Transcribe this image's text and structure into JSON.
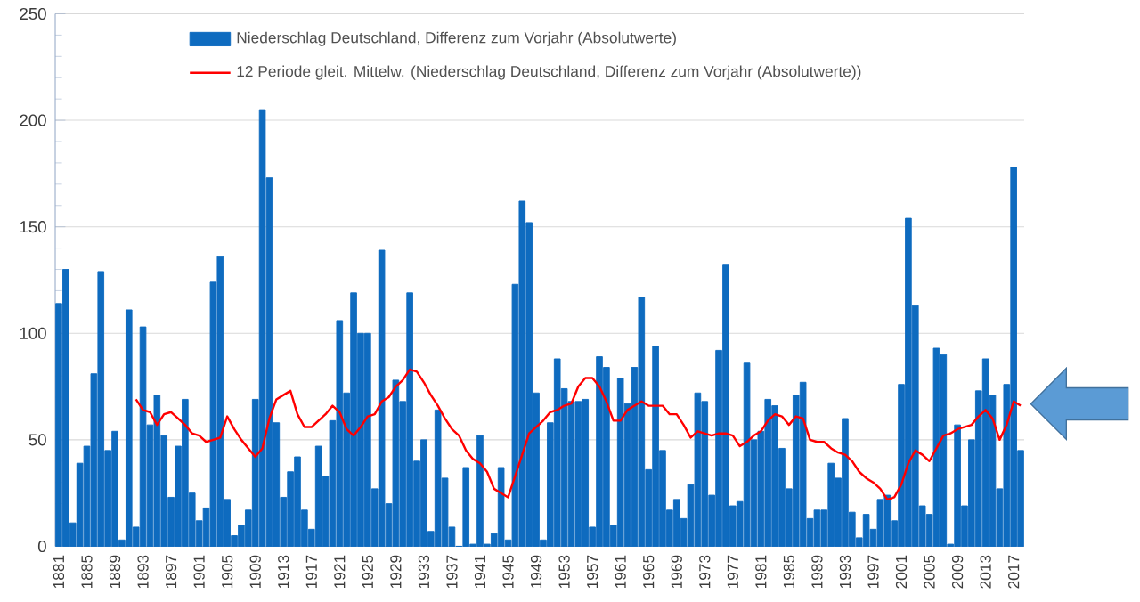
{
  "chart_data": {
    "type": "bar",
    "categories": [
      "1881",
      null,
      null,
      null,
      "1885",
      null,
      null,
      null,
      "1889",
      null,
      null,
      null,
      "1893",
      null,
      null,
      null,
      "1897",
      null,
      null,
      null,
      "1901",
      null,
      null,
      null,
      "1905",
      null,
      null,
      null,
      "1909",
      null,
      null,
      null,
      "1913",
      null,
      null,
      null,
      "1917",
      null,
      null,
      null,
      "1921",
      null,
      null,
      null,
      "1925",
      null,
      null,
      null,
      "1929",
      null,
      null,
      null,
      "1933",
      null,
      null,
      null,
      "1937",
      null,
      null,
      null,
      "1941",
      null,
      null,
      null,
      "1945",
      null,
      null,
      null,
      "1949",
      null,
      null,
      null,
      "1953",
      null,
      null,
      null,
      "1957",
      null,
      null,
      null,
      "1961",
      null,
      null,
      null,
      "1965",
      null,
      null,
      null,
      "1969",
      null,
      null,
      null,
      "1973",
      null,
      null,
      null,
      "1977",
      null,
      null,
      null,
      "1981",
      null,
      null,
      null,
      "1985",
      null,
      null,
      null,
      "1989",
      null,
      null,
      null,
      "1993",
      null,
      null,
      null,
      "1997",
      null,
      null,
      null,
      "2001",
      null,
      null,
      null,
      "2005",
      null,
      null,
      null,
      "2009",
      null,
      null,
      null,
      "2013",
      null,
      null,
      null,
      "2017",
      null
    ],
    "series": [
      {
        "name": "Niederschlag Deutschland, Differenz zum Vorjahr (Absolutwerte)",
        "color": "#0e6bbf",
        "values": [
          114,
          130,
          11,
          39,
          47,
          81,
          129,
          45,
          54,
          3,
          111,
          9,
          103,
          57,
          71,
          52,
          23,
          47,
          69,
          25,
          12,
          18,
          124,
          136,
          22,
          5,
          10,
          17,
          69,
          205,
          173,
          58,
          23,
          35,
          42,
          17,
          8,
          47,
          33,
          59,
          106,
          72,
          119,
          100,
          100,
          27,
          139,
          20,
          78,
          68,
          119,
          40,
          50,
          7,
          64,
          32,
          9,
          0,
          37,
          1,
          52,
          1,
          6,
          37,
          3,
          123,
          162,
          152,
          72,
          3,
          58,
          88,
          74,
          68,
          68,
          69,
          9,
          89,
          84,
          10,
          79,
          67,
          84,
          117,
          36,
          94,
          45,
          17,
          22,
          13,
          29,
          72,
          68,
          24,
          92,
          132,
          19,
          21,
          86,
          50,
          54,
          69,
          66,
          46,
          27,
          71,
          77,
          13,
          17,
          17,
          39,
          32,
          60,
          16,
          4,
          15,
          8,
          22,
          24,
          12,
          76,
          154,
          113,
          19,
          15,
          93,
          90,
          1,
          57,
          19,
          50,
          73,
          88,
          71,
          27,
          76,
          178,
          45
        ]
      },
      {
        "name": "12 Periode gleit. Mittelw. (Niederschlag Deutschland, Differenz zum Vorjahr (Absolutwerte))",
        "type": "line",
        "color": "#ff0000",
        "values": [
          null,
          null,
          null,
          null,
          null,
          null,
          null,
          null,
          null,
          null,
          null,
          69,
          64,
          63,
          57,
          62,
          63,
          60,
          57,
          53,
          52,
          49,
          50,
          51,
          61,
          55,
          50,
          46,
          42,
          46,
          60,
          69,
          71,
          73,
          62,
          56,
          56,
          59,
          62,
          66,
          63,
          55,
          52,
          56,
          61,
          62,
          68,
          70,
          75,
          78,
          83,
          82,
          77,
          71,
          66,
          60,
          55,
          52,
          45,
          41,
          39,
          35,
          27,
          25,
          23,
          33,
          43,
          53,
          56,
          59,
          63,
          64,
          66,
          67,
          75,
          79,
          79,
          75,
          68,
          59,
          59,
          64,
          66,
          68,
          66,
          66,
          66,
          62,
          62,
          57,
          51,
          54,
          53,
          52,
          53,
          53,
          52,
          47,
          49,
          52,
          54,
          59,
          62,
          61,
          57,
          61,
          60,
          50,
          49,
          49,
          46,
          44,
          43,
          40,
          35,
          32,
          30,
          27,
          22,
          23,
          29,
          39,
          45,
          43,
          40,
          46,
          52,
          53,
          55,
          56,
          57,
          61,
          64,
          60,
          50,
          57,
          68,
          66
        ]
      }
    ],
    "ylim": [
      0,
      250
    ],
    "yticks": [
      0,
      50,
      100,
      150,
      200,
      250
    ],
    "grid": "y",
    "legend": "top"
  }
}
